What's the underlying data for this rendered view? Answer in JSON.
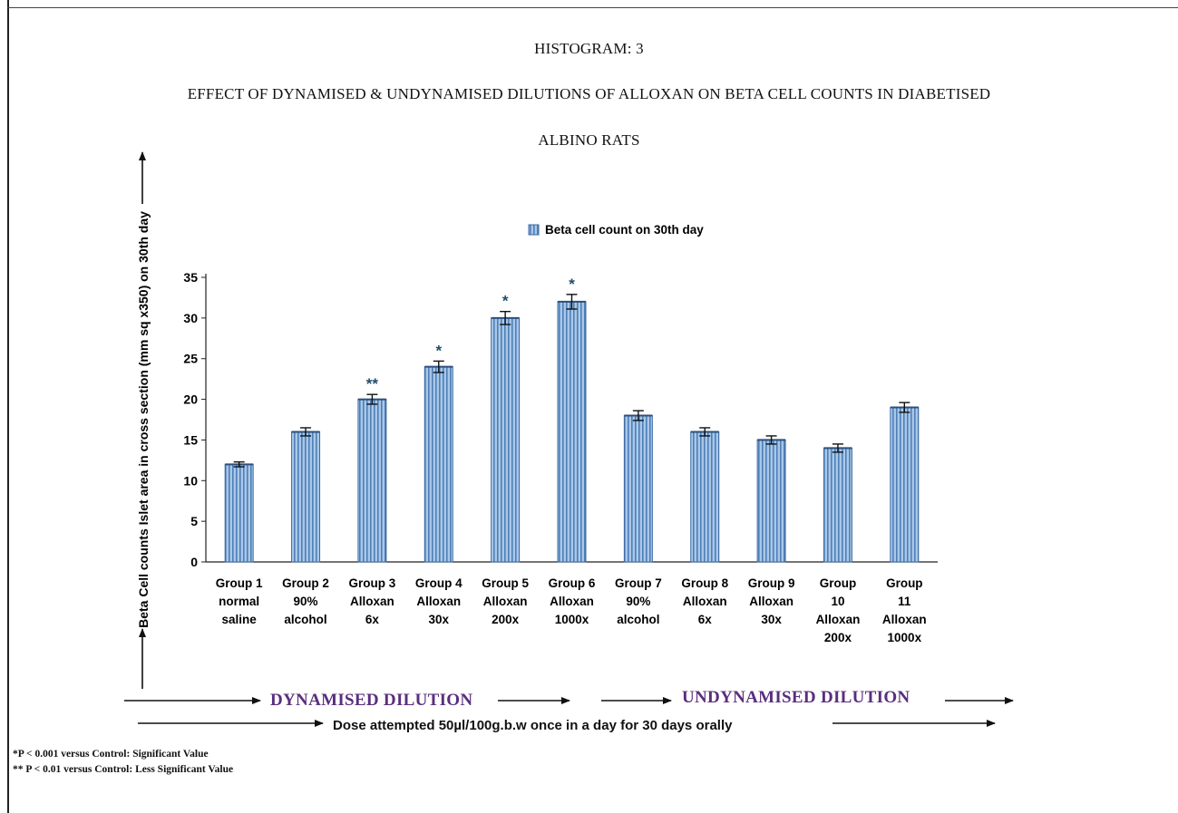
{
  "header": {
    "heading": "HISTOGRAM: 3",
    "title_line1": "EFFECT OF DYNAMISED & UNDYNAMISED DILUTIONS OF ALLOXAN ON BETA CELL COUNTS IN DIABETISED",
    "title_line2": "ALBINO RATS"
  },
  "chart_data": {
    "type": "bar",
    "ylabel": "Beta Cell counts Islet area in cross section (mm sq x350) on 30th day",
    "xlabel": "",
    "ylim": [
      0,
      35
    ],
    "yticks": [
      0,
      5,
      10,
      15,
      20,
      25,
      30,
      35
    ],
    "grid": false,
    "legend_position": "top-center",
    "categories": [
      [
        "Group 1",
        "normal",
        "saline"
      ],
      [
        "Group 2",
        "90%",
        "alcohol"
      ],
      [
        "Group 3",
        "Alloxan",
        "6x"
      ],
      [
        "Group 4",
        "Alloxan",
        "30x"
      ],
      [
        "Group 5",
        "Alloxan",
        "200x"
      ],
      [
        "Group 6",
        "Alloxan",
        "1000x"
      ],
      [
        "Group 7",
        "90%",
        "alcohol"
      ],
      [
        "Group 8",
        "Alloxan",
        "6x"
      ],
      [
        "Group 9",
        "Alloxan",
        "30x"
      ],
      [
        "Group",
        "10",
        "Alloxan",
        "200x"
      ],
      [
        "Group",
        "11",
        "Alloxan",
        "1000x"
      ]
    ],
    "series": [
      {
        "name": "Beta cell count on 30th day",
        "values": [
          12,
          16,
          20,
          24,
          30,
          32,
          18,
          16,
          15,
          14,
          19
        ],
        "errors": [
          0.3,
          0.5,
          0.6,
          0.7,
          0.8,
          0.9,
          0.6,
          0.5,
          0.5,
          0.5,
          0.6
        ],
        "significance": [
          "",
          "",
          "**",
          "*",
          "*",
          "*",
          "",
          "",
          "",
          "",
          ""
        ]
      }
    ],
    "bar_color": "#8eb4dc",
    "bar_stripe_color": "#4f7fb8"
  },
  "annotations": {
    "dynamised": "DYNAMISED DILUTION",
    "undynamised": "UNDYNAMISED DILUTION",
    "dose": "Dose attempted 50µl/100g.b.w once in a day  for 30 days orally",
    "footnote1": "*P < 0.001 versus Control: Significant Value",
    "footnote2": "** P < 0.01 versus Control: Less Significant Value",
    "dilution_color": "#5a2e7e"
  }
}
